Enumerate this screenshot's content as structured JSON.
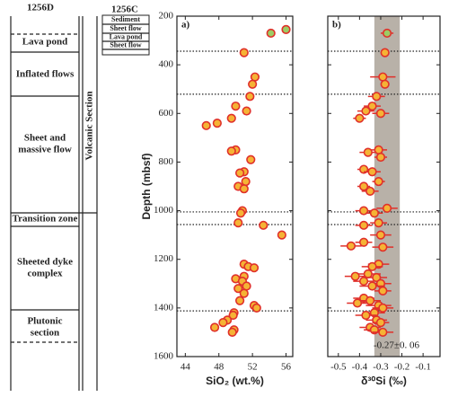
{
  "column": {
    "titles": [
      "1256D",
      "1256C"
    ],
    "units": [
      "Lava pond",
      "Inflated flows",
      "Sheet and\nmassive flow",
      "Transition zone",
      "Sheeted dyke\ncomplex",
      "Plutonic\nsection"
    ],
    "side_label": "Volcanic Section",
    "core_c_units": [
      "Sediment",
      "Sheet flow",
      "Lava pond",
      "Sheet flow"
    ]
  },
  "chart_data": [
    {
      "type": "scatter",
      "panel_label": "a)",
      "y_label": "Depth (mbsf)",
      "x_label": "SiO₂ (wt.%)",
      "xlim": [
        43,
        56.8
      ],
      "xticks": [
        44,
        48,
        52,
        56
      ],
      "ylim": [
        200,
        1600
      ],
      "yticks": [
        200,
        400,
        600,
        800,
        1000,
        1200,
        1400,
        1600
      ],
      "y_inverted": true,
      "hlines": [
        344,
        521,
        1005,
        1057,
        1412
      ],
      "edgecolor": "#e0302a",
      "series": [
        {
          "color": "#f5b335",
          "x": [
            51,
            52.3,
            52,
            51.7,
            50,
            51.3,
            49.5,
            47.8,
            46.5,
            51.8,
            50,
            49.5,
            51,
            50.5,
            51.2,
            50.3,
            51,
            50.8,
            50.6,
            50.3,
            53.3,
            55.5,
            51,
            51.5,
            52.2,
            51,
            50,
            50.8,
            51.3,
            50.3,
            51,
            50.5,
            52.2,
            52.5,
            49.8,
            49.7,
            49,
            48.5,
            49.8,
            49.6,
            47.5
          ],
          "values": [
            350,
            450,
            480,
            530,
            570,
            590,
            620,
            640,
            650,
            790,
            750,
            755,
            840,
            845,
            880,
            900,
            910,
            1000,
            1010,
            1050,
            1060,
            1100,
            1220,
            1230,
            1235,
            1270,
            1280,
            1290,
            1310,
            1320,
            1340,
            1370,
            1390,
            1400,
            1420,
            1430,
            1450,
            1460,
            1490,
            1500,
            1480
          ]
        },
        {
          "color": "#9ccc65",
          "x": [
            54.2,
            56.0
          ],
          "values": [
            270,
            255
          ]
        }
      ]
    },
    {
      "type": "scatter",
      "panel_label": "b)",
      "x_label": "δ³⁰Si (‰)",
      "xlim": [
        -0.55,
        -0.02
      ],
      "xticks": [
        -0.5,
        -0.4,
        -0.3,
        -0.2,
        -0.1
      ],
      "ylim": [
        200,
        1600
      ],
      "yticks": [
        200,
        400,
        600,
        800,
        1000,
        1200,
        1400,
        1600
      ],
      "y_inverted": true,
      "y_tick_labels": false,
      "hlines": [
        344,
        521,
        1005,
        1057,
        1412
      ],
      "edgecolor": "#e0302a",
      "band": [
        -0.33,
        -0.21
      ],
      "band_color": "#b8b1a8",
      "annotation": "-0.27±0. 06",
      "series": [
        {
          "color": "#f5b335",
          "x": [
            -0.28,
            -0.29,
            -0.28,
            -0.32,
            -0.34,
            -0.37,
            -0.4,
            -0.3,
            -0.31,
            -0.36,
            -0.3,
            -0.38,
            -0.34,
            -0.31,
            -0.38,
            -0.35,
            -0.27,
            -0.38,
            -0.33,
            -0.31,
            -0.38,
            -0.3,
            -0.38,
            -0.44,
            -0.29,
            -0.31,
            -0.34,
            -0.36,
            -0.42,
            -0.32,
            -0.38,
            -0.3,
            -0.34,
            -0.29,
            -0.38,
            -0.35,
            -0.41,
            -0.31,
            -0.29,
            -0.33,
            -0.37,
            -0.32,
            -0.3,
            -0.35,
            -0.33,
            -0.29
          ],
          "values": [
            350,
            450,
            480,
            530,
            570,
            590,
            620,
            600,
            750,
            760,
            780,
            830,
            840,
            880,
            900,
            920,
            990,
            1000,
            1010,
            1050,
            1060,
            1100,
            1130,
            1145,
            1150,
            1220,
            1230,
            1260,
            1270,
            1275,
            1290,
            1300,
            1310,
            1330,
            1360,
            1370,
            1380,
            1390,
            1400,
            1420,
            1430,
            1450,
            1460,
            1480,
            1490,
            1500
          ],
          "errors": [
            0.02,
            0.06,
            0.02,
            0.04,
            0.04,
            0.04,
            0.03,
            0.04,
            0.04,
            0.04,
            0.03,
            0.03,
            0.04,
            0.03,
            0.03,
            0.04,
            0.05,
            0.04,
            0.04,
            0.04,
            0.04,
            0.05,
            0.04,
            0.05,
            0.05,
            0.05,
            0.05,
            0.06,
            0.05,
            0.05,
            0.05,
            0.05,
            0.06,
            0.04,
            0.05,
            0.05,
            0.05,
            0.06,
            0.05,
            0.05,
            0.05,
            0.05,
            0.04,
            0.05,
            0.05,
            0.05
          ]
        },
        {
          "color": "#9ccc65",
          "x": [
            -0.27
          ],
          "values": [
            270
          ],
          "errors": [
            0.03
          ]
        }
      ]
    }
  ]
}
